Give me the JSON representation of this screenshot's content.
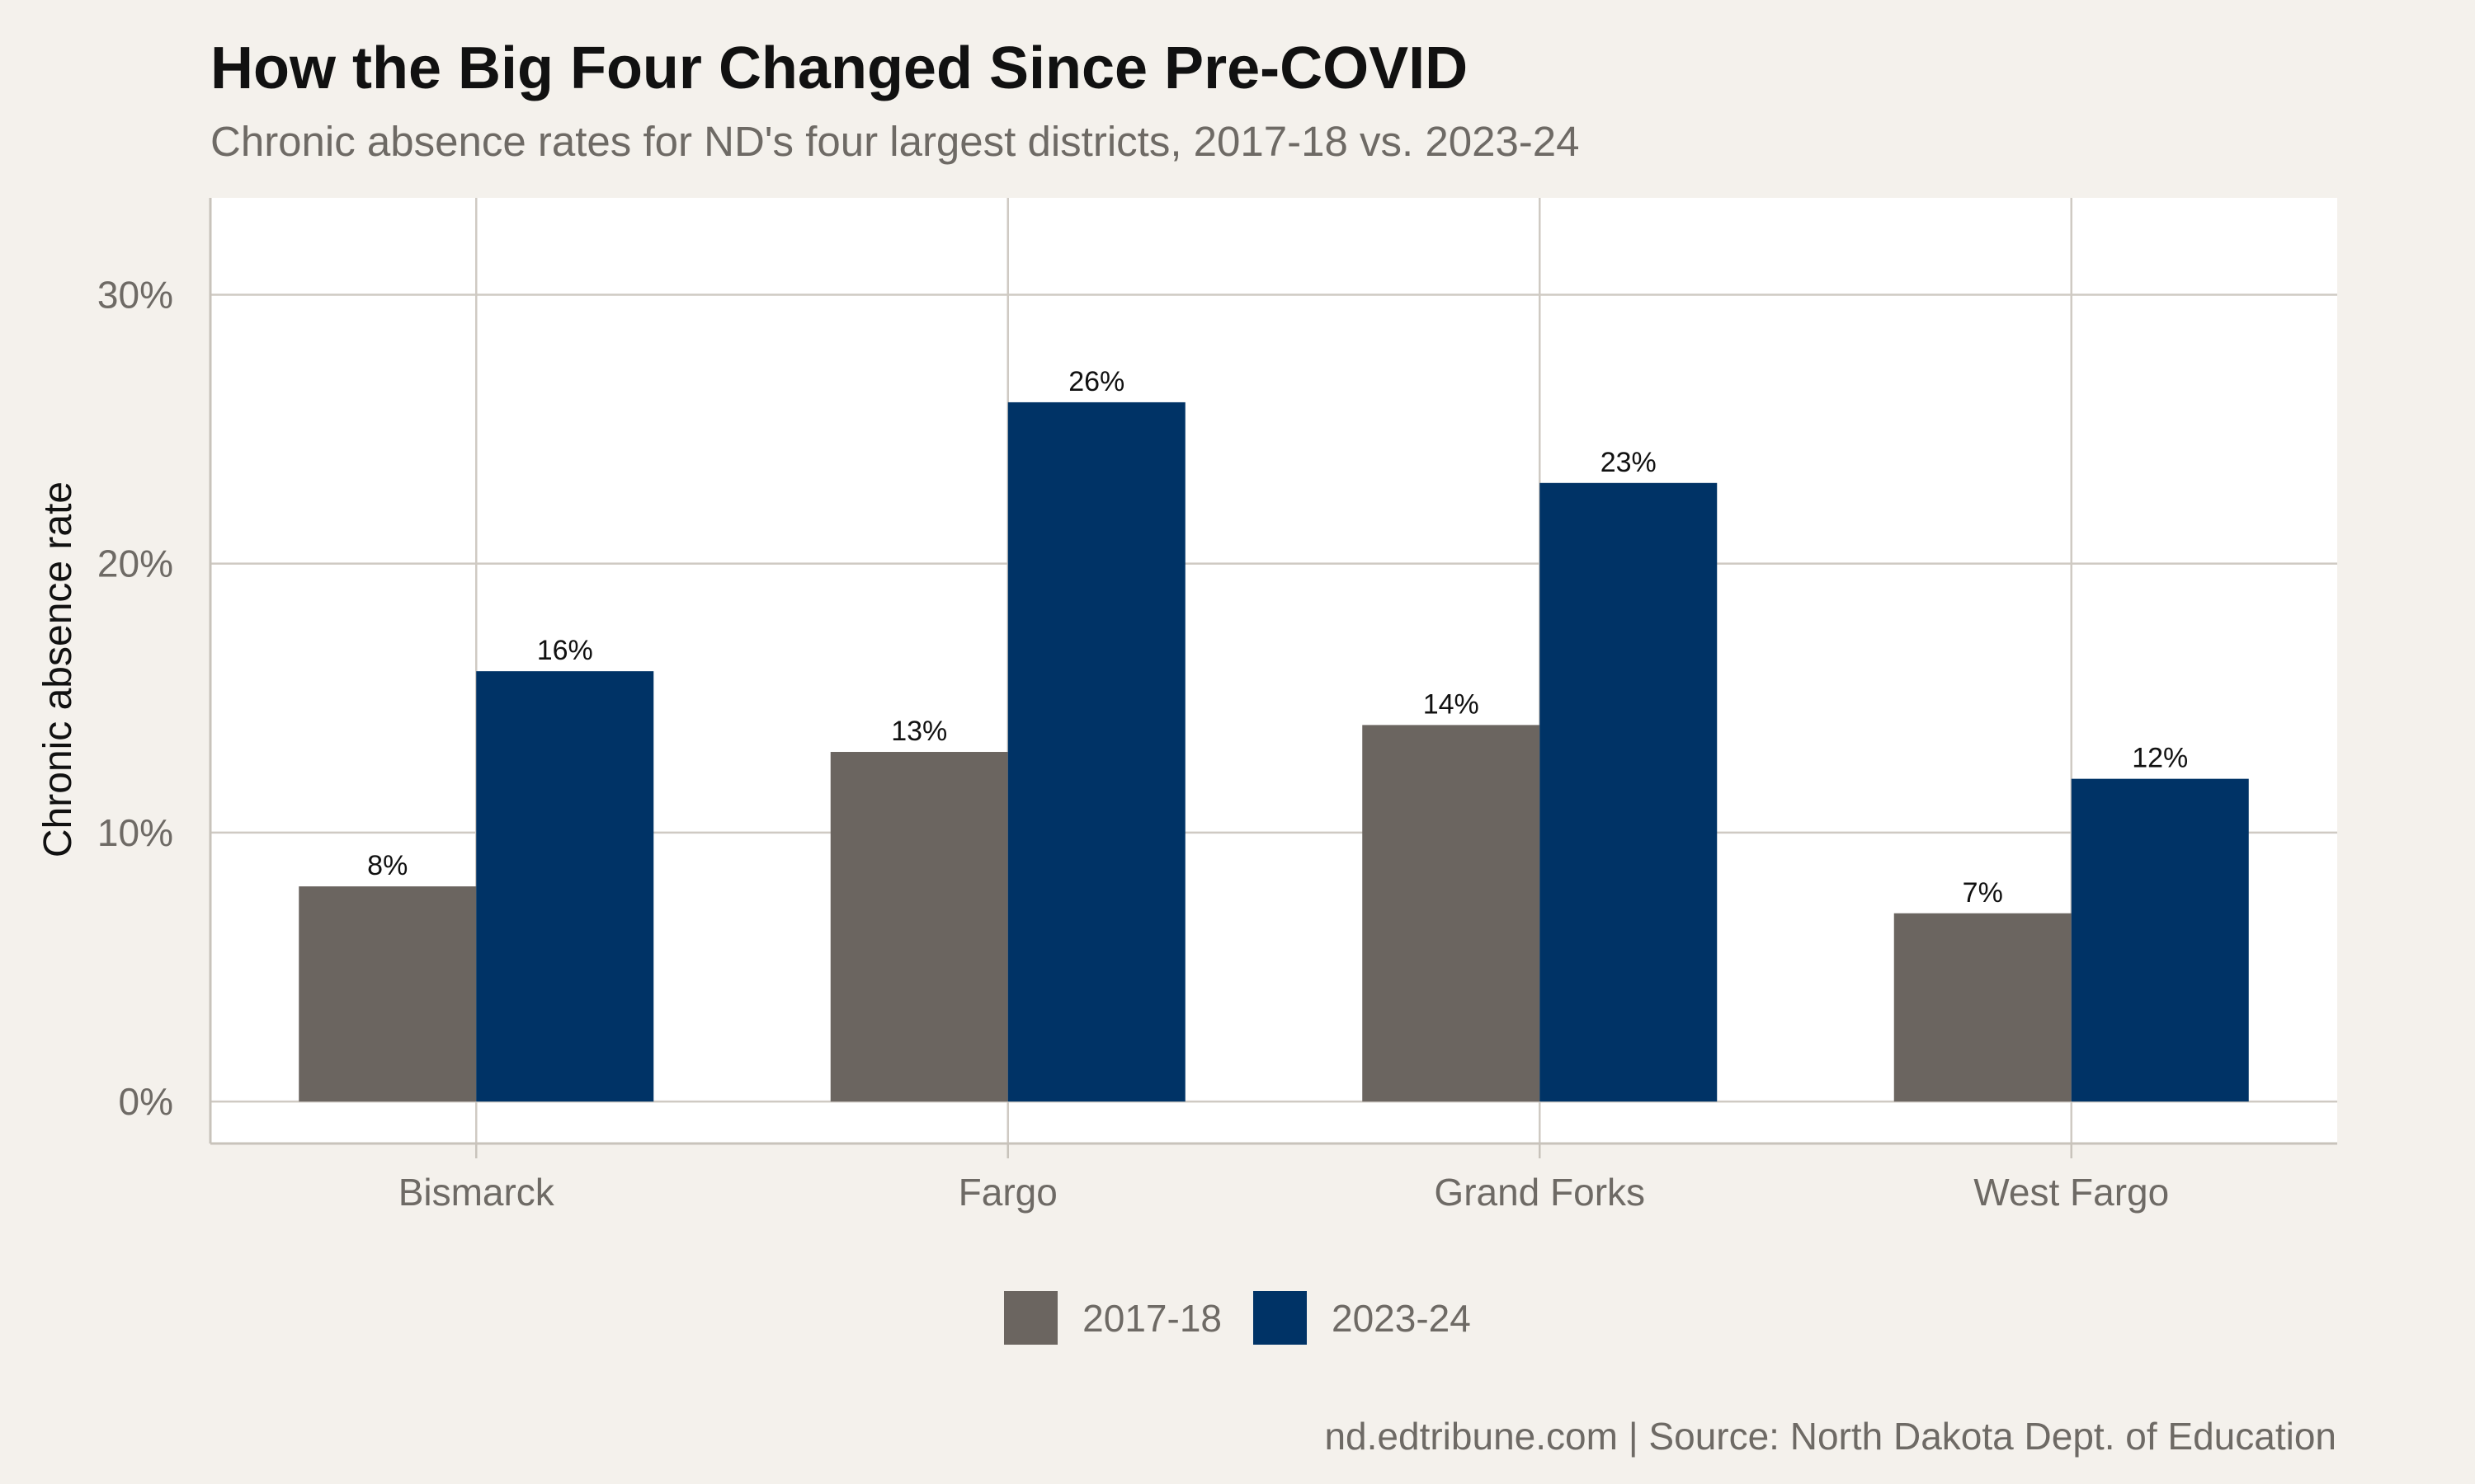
{
  "chart_data": {
    "type": "bar",
    "title": "How the Big Four Changed Since Pre-COVID",
    "subtitle": "Chronic absence rates for ND's four largest districts, 2017-18 vs. 2023-24",
    "xlabel": "",
    "ylabel": "Chronic absence rate",
    "categories": [
      "Bismarck",
      "Fargo",
      "Grand Forks",
      "West Fargo"
    ],
    "series": [
      {
        "name": "2017-18",
        "values": [
          8,
          13,
          14,
          7
        ],
        "labels": [
          "8%",
          "13%",
          "14%",
          "7%"
        ],
        "color": "#6B6560"
      },
      {
        "name": "2023-24",
        "values": [
          16,
          26,
          23,
          12
        ],
        "labels": [
          "16%",
          "26%",
          "23%",
          "12%"
        ],
        "color": "#003366"
      }
    ],
    "ylim": [
      -1.56,
      33.6
    ],
    "yticks": [
      0,
      10,
      20,
      30
    ],
    "ytick_labels": [
      "0%",
      "10%",
      "20%",
      "30%"
    ],
    "grid": true,
    "legend_position": "bottom",
    "caption": "nd.edtribune.com | Source: North Dakota Dept. of Education"
  }
}
